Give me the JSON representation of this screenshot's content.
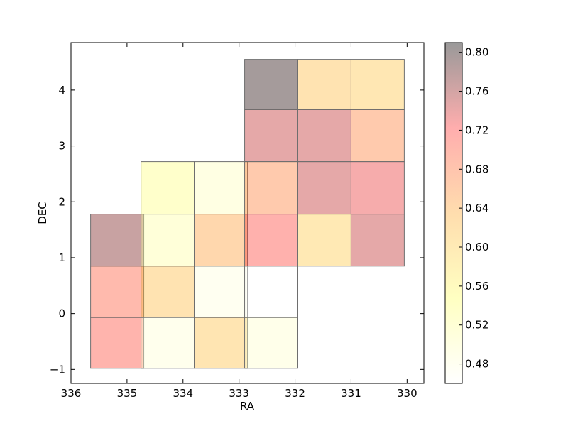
{
  "chart_data": {
    "type": "heatmap",
    "xlabel": "RA",
    "ylabel": "DEC",
    "xlim": [
      336,
      329.7
    ],
    "ylim": [
      -1.25,
      4.85
    ],
    "x_ticks": [
      336,
      335,
      334,
      333,
      332,
      331,
      330
    ],
    "y_ticks": [
      -1,
      0,
      1,
      2,
      3,
      4
    ],
    "colorbar": {
      "range": [
        0.46,
        0.81
      ],
      "ticks": [
        0.48,
        0.52,
        0.56,
        0.6,
        0.64,
        0.68,
        0.72,
        0.76,
        0.8
      ],
      "tick_labels": [
        "0.48",
        "0.52",
        "0.56",
        "0.60",
        "0.64",
        "0.68",
        "0.72",
        "0.76",
        "0.80"
      ],
      "colormap": [
        "#ffffff",
        "#ffff66",
        "#ffaa33",
        "#ff3333",
        "#000000"
      ]
    },
    "cells": [
      {
        "ra_min": 332.9,
        "ra_max": 331.95,
        "dec_min": 3.65,
        "dec_max": 4.55,
        "value": 0.8
      },
      {
        "ra_min": 331.95,
        "ra_max": 331.0,
        "dec_min": 3.65,
        "dec_max": 4.55,
        "value": 0.62
      },
      {
        "ra_min": 331.0,
        "ra_max": 330.05,
        "dec_min": 3.65,
        "dec_max": 4.55,
        "value": 0.61
      },
      {
        "ra_min": 332.9,
        "ra_max": 331.95,
        "dec_min": 2.72,
        "dec_max": 3.65,
        "value": 0.745
      },
      {
        "ra_min": 331.95,
        "ra_max": 331.0,
        "dec_min": 2.72,
        "dec_max": 3.65,
        "value": 0.745
      },
      {
        "ra_min": 331.0,
        "ra_max": 330.05,
        "dec_min": 2.72,
        "dec_max": 3.65,
        "value": 0.67
      },
      {
        "ra_min": 334.75,
        "ra_max": 333.8,
        "dec_min": 1.78,
        "dec_max": 2.72,
        "value": 0.535
      },
      {
        "ra_min": 333.8,
        "ra_max": 332.85,
        "dec_min": 1.78,
        "dec_max": 2.72,
        "value": 0.5
      },
      {
        "ra_min": 332.9,
        "ra_max": 331.95,
        "dec_min": 1.78,
        "dec_max": 2.72,
        "value": 0.67
      },
      {
        "ra_min": 331.95,
        "ra_max": 331.0,
        "dec_min": 1.78,
        "dec_max": 2.72,
        "value": 0.745
      },
      {
        "ra_min": 331.0,
        "ra_max": 330.05,
        "dec_min": 1.78,
        "dec_max": 2.72,
        "value": 0.73
      },
      {
        "ra_min": 335.65,
        "ra_max": 334.7,
        "dec_min": 0.85,
        "dec_max": 1.78,
        "value": 0.77
      },
      {
        "ra_min": 334.75,
        "ra_max": 333.8,
        "dec_min": 0.85,
        "dec_max": 1.78,
        "value": 0.515
      },
      {
        "ra_min": 333.8,
        "ra_max": 332.85,
        "dec_min": 0.85,
        "dec_max": 1.78,
        "value": 0.645
      },
      {
        "ra_min": 332.9,
        "ra_max": 331.95,
        "dec_min": 0.85,
        "dec_max": 1.78,
        "value": 0.715
      },
      {
        "ra_min": 331.95,
        "ra_max": 331.0,
        "dec_min": 0.85,
        "dec_max": 1.78,
        "value": 0.605
      },
      {
        "ra_min": 331.0,
        "ra_max": 330.05,
        "dec_min": 0.85,
        "dec_max": 1.78,
        "value": 0.745
      },
      {
        "ra_min": 335.65,
        "ra_max": 334.7,
        "dec_min": -0.07,
        "dec_max": 0.85,
        "value": 0.7
      },
      {
        "ra_min": 334.75,
        "ra_max": 333.8,
        "dec_min": -0.07,
        "dec_max": 0.85,
        "value": 0.62
      },
      {
        "ra_min": 333.8,
        "ra_max": 332.85,
        "dec_min": -0.07,
        "dec_max": 0.85,
        "value": 0.48
      },
      {
        "ra_min": 332.9,
        "ra_max": 331.95,
        "dec_min": -0.07,
        "dec_max": 0.85,
        "value": 0.46
      },
      {
        "ra_min": 335.65,
        "ra_max": 334.7,
        "dec_min": -0.98,
        "dec_max": -0.07,
        "value": 0.71
      },
      {
        "ra_min": 334.75,
        "ra_max": 333.8,
        "dec_min": -0.98,
        "dec_max": -0.07,
        "value": 0.485
      },
      {
        "ra_min": 333.8,
        "ra_max": 332.85,
        "dec_min": -0.98,
        "dec_max": -0.07,
        "value": 0.615
      },
      {
        "ra_min": 332.9,
        "ra_max": 331.95,
        "dec_min": -0.98,
        "dec_max": -0.07,
        "value": 0.49
      }
    ]
  }
}
